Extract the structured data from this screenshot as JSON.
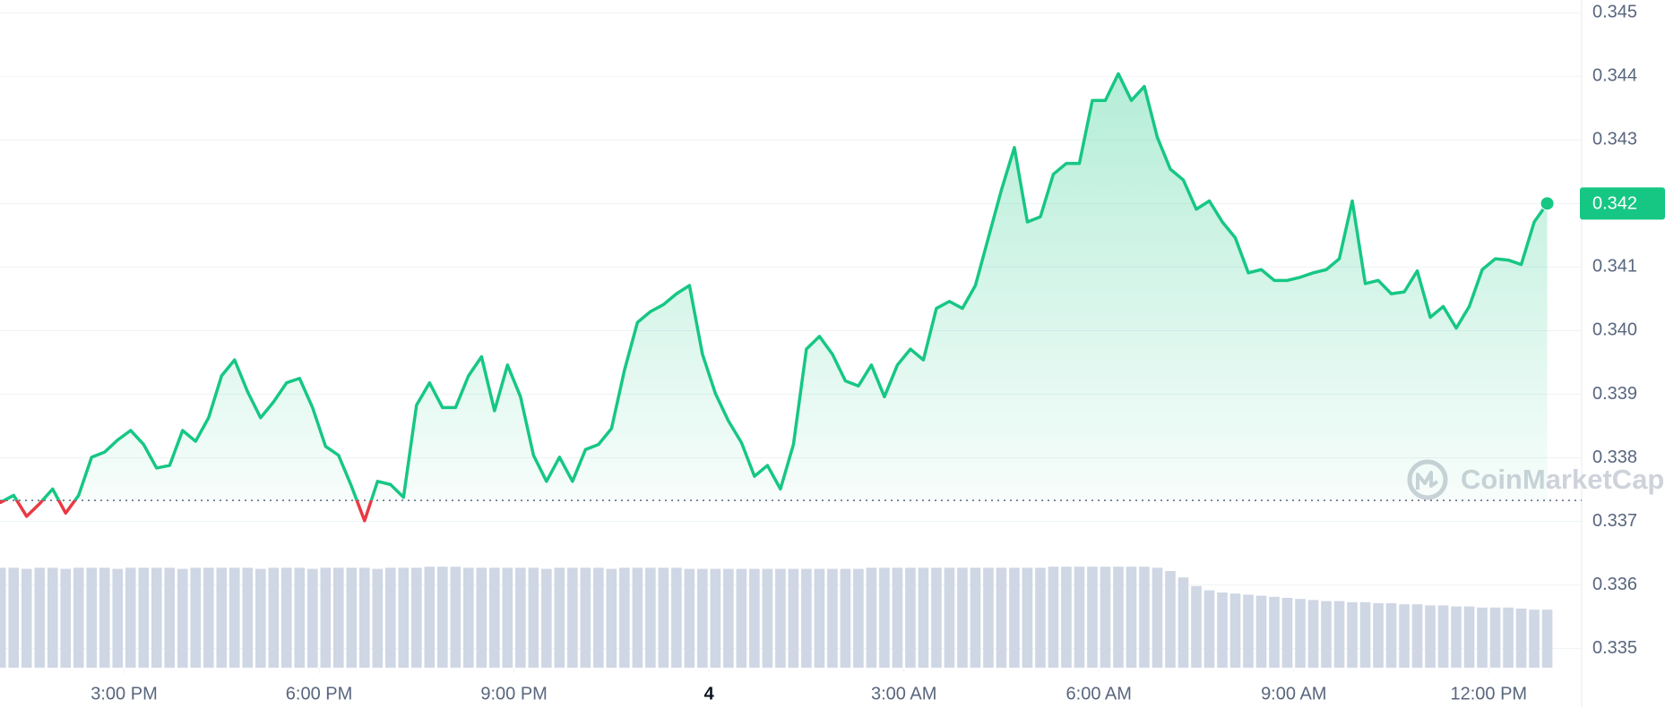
{
  "chart_data": {
    "type": "line",
    "x": [
      13.1,
      13.3,
      13.5,
      13.7,
      13.9,
      14.1,
      14.3,
      14.5,
      14.7,
      14.9,
      15.1,
      15.3,
      15.5,
      15.7,
      15.9,
      16.1,
      16.3,
      16.5,
      16.7,
      16.9,
      17.1,
      17.3,
      17.5,
      17.7,
      17.9,
      18.1,
      18.3,
      18.5,
      18.7,
      18.9,
      19.1,
      19.3,
      19.5,
      19.7,
      19.9,
      20.1,
      20.3,
      20.5,
      20.7,
      20.9,
      21.1,
      21.3,
      21.5,
      21.7,
      21.9,
      22.1,
      22.3,
      22.5,
      22.7,
      22.9,
      23.1,
      23.3,
      23.5,
      23.7,
      23.9,
      24.1,
      24.3,
      24.5,
      24.7,
      24.9,
      25.1,
      25.3,
      25.5,
      25.7,
      25.9,
      26.1,
      26.3,
      26.5,
      26.7,
      26.9,
      27.1,
      27.3,
      27.5,
      27.7,
      27.9,
      28.1,
      28.3,
      28.5,
      28.7,
      28.9,
      29.1,
      29.3,
      29.5,
      29.7,
      29.9,
      30.1,
      30.3,
      30.5,
      30.7,
      30.9,
      31.1,
      31.3,
      31.5,
      31.7,
      31.9,
      32.1,
      32.3,
      32.5,
      32.7,
      32.9,
      33.1,
      33.3,
      33.5,
      33.7,
      33.9,
      34.1,
      34.3,
      34.5,
      34.7,
      34.9,
      35.1,
      35.3,
      35.5,
      35.7,
      35.9,
      36.1,
      36.3,
      36.5,
      36.7,
      36.9
    ],
    "xlim": [
      13.09,
      37.43
    ],
    "xticks": [
      {
        "value": 15,
        "label": "3:00 PM"
      },
      {
        "value": 18,
        "label": "6:00 PM"
      },
      {
        "value": 21,
        "label": "9:00 PM"
      },
      {
        "value": 24,
        "label": "4",
        "bold": true
      },
      {
        "value": 27,
        "label": "3:00 AM"
      },
      {
        "value": 30,
        "label": "6:00 AM"
      },
      {
        "value": 33,
        "label": "9:00 AM"
      },
      {
        "value": 36,
        "label": "12:00 PM"
      }
    ],
    "ylim": [
      0.3347,
      0.3452
    ],
    "yticks": [
      0.335,
      0.336,
      0.337,
      0.338,
      0.339,
      {
        "value": 0.34,
        "label": "0.340"
      },
      0.341,
      0.342,
      0.343,
      0.344,
      0.345
    ],
    "grid": true,
    "series": [
      {
        "color": "#16c784",
        "down_color": "#ea3943",
        "values": [
          0.3373,
          0.33741,
          0.33708,
          0.33728,
          0.33751,
          0.33713,
          0.33741,
          0.33801,
          0.33809,
          0.33828,
          0.33843,
          0.33821,
          0.33784,
          0.33788,
          0.33843,
          0.33826,
          0.33863,
          0.33929,
          0.33954,
          0.33904,
          0.33863,
          0.33888,
          0.33918,
          0.33925,
          0.33879,
          0.33818,
          0.33804,
          0.33755,
          0.33701,
          0.33763,
          0.33758,
          0.33738,
          0.33883,
          0.33918,
          0.33879,
          0.33879,
          0.33929,
          0.33959,
          0.33874,
          0.33946,
          0.33896,
          0.33804,
          0.33763,
          0.33801,
          0.33763,
          0.33813,
          0.33821,
          0.33846,
          0.33938,
          0.34013,
          0.3403,
          0.34041,
          0.34058,
          0.34071,
          0.33963,
          0.33901,
          0.33858,
          0.33824,
          0.33771,
          0.33788,
          0.33751,
          0.33821,
          0.33971,
          0.33991,
          0.33963,
          0.33921,
          0.33913,
          0.33946,
          0.33896,
          0.33946,
          0.33971,
          0.33954,
          0.34035,
          0.34046,
          0.34035,
          0.34071,
          0.34146,
          0.34221,
          0.34288,
          0.34171,
          0.34179,
          0.34246,
          0.34263,
          0.34263,
          0.34362,
          0.34362,
          0.34404,
          0.34362,
          0.34384,
          0.34304,
          0.34254,
          0.34237,
          0.34191,
          0.34204,
          0.34171,
          0.34146,
          0.34091,
          0.34096,
          0.34079,
          0.34079,
          0.34084,
          0.34091,
          0.34096,
          0.34113,
          0.34204,
          0.34074,
          0.34079,
          0.34058,
          0.34061,
          0.34094,
          0.34021,
          0.34038,
          0.34004,
          0.34038,
          0.34096,
          0.34113,
          0.34111,
          0.34104,
          0.34171,
          0.342
        ]
      }
    ],
    "baseline": 0.33733,
    "last_price_label": "0.342",
    "volume": {
      "color": "#cfd6e4",
      "vlim": [
        0,
        100
      ],
      "values": [
        93,
        93,
        92,
        93,
        93,
        92,
        93,
        93,
        93,
        92,
        93,
        93,
        93,
        93,
        92,
        93,
        93,
        93,
        93,
        93,
        92,
        93,
        93,
        93,
        92,
        93,
        93,
        93,
        93,
        92,
        93,
        93,
        93,
        94,
        94,
        94,
        93,
        93,
        93,
        93,
        93,
        93,
        92,
        93,
        93,
        93,
        93,
        92,
        93,
        93,
        93,
        93,
        93,
        92,
        92,
        92,
        92,
        92,
        92,
        92,
        92,
        92,
        92,
        92,
        92,
        92,
        92,
        93,
        93,
        93,
        93,
        93,
        93,
        93,
        93,
        93,
        93,
        93,
        93,
        93,
        93,
        94,
        94,
        94,
        94,
        94,
        94,
        94,
        94,
        93,
        90,
        84,
        76,
        72,
        70,
        69,
        68,
        67,
        66,
        65,
        64,
        63,
        62,
        62,
        61,
        61,
        60,
        60,
        59,
        59,
        58,
        58,
        57,
        57,
        56,
        56,
        56,
        55,
        54,
        54
      ]
    },
    "watermark": "CoinMarketCap"
  }
}
